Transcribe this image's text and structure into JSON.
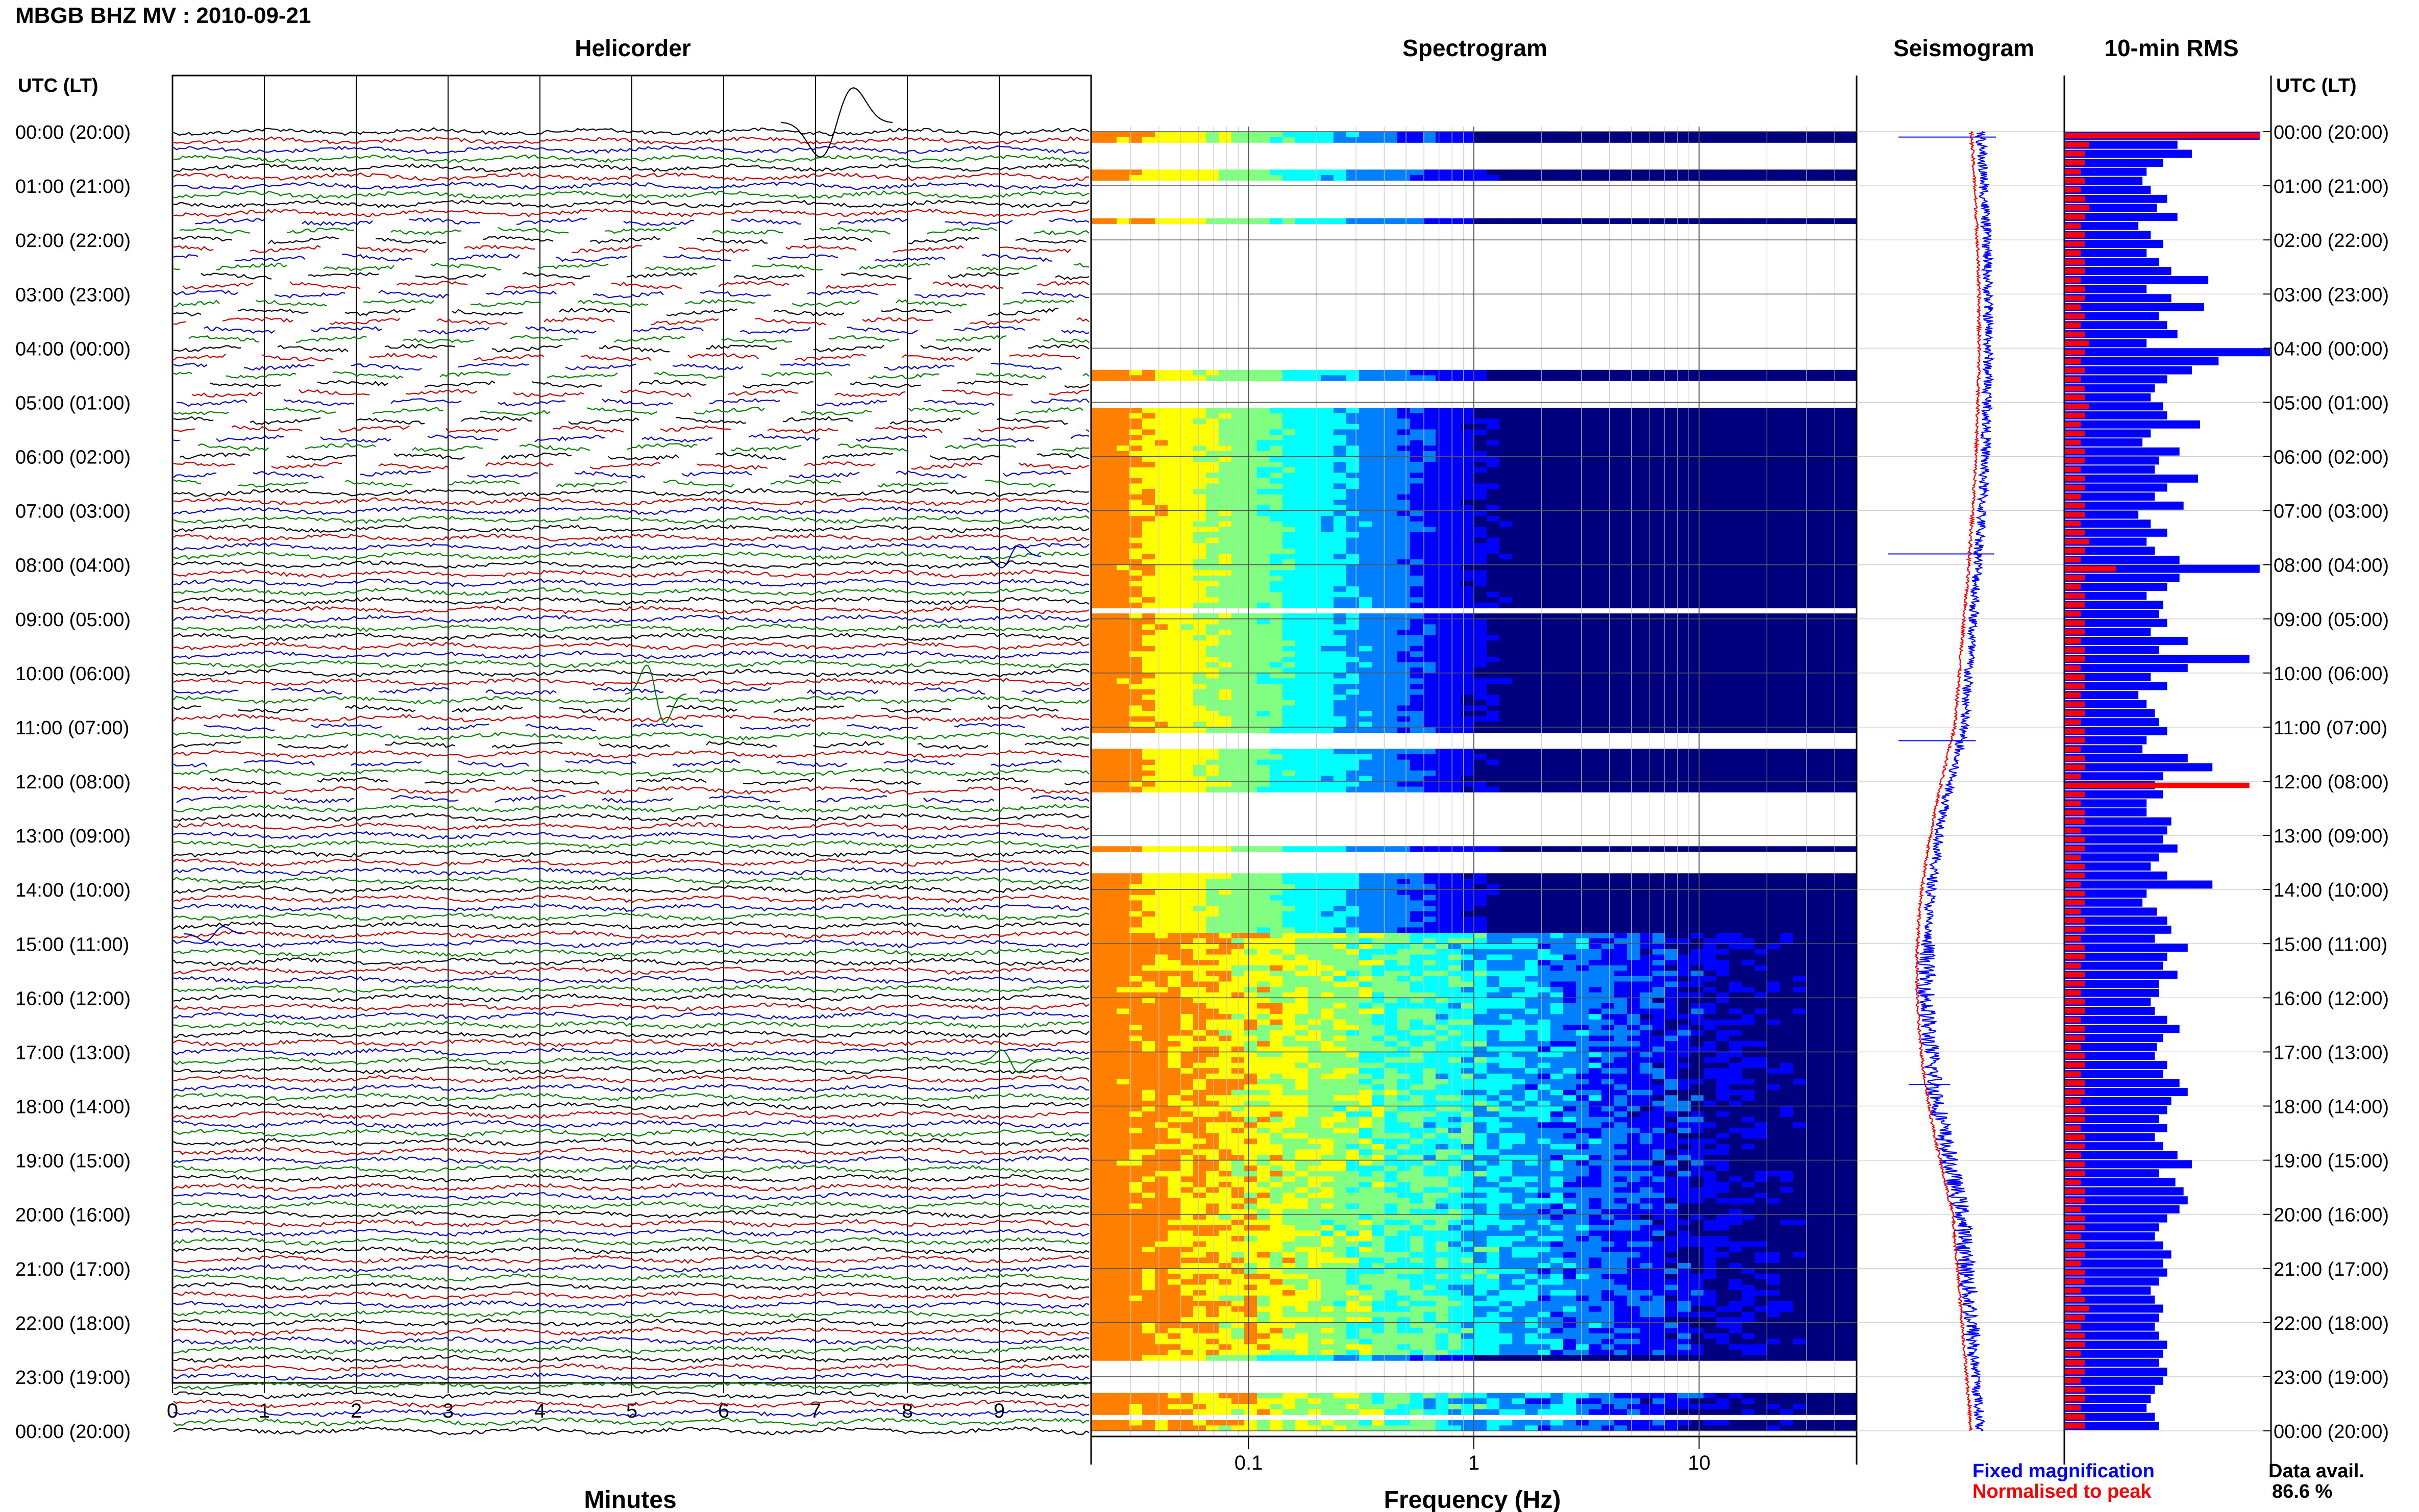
{
  "page": {
    "title": "MBGB BHZ MV : 2010-09-21"
  },
  "panels": {
    "helicorder": "Helicorder",
    "spectrogram": "Spectrogram",
    "seismogram": "Seismogram",
    "rms": "10-min RMS"
  },
  "time_axis": {
    "header": "UTC (LT)",
    "labels": [
      "00:00 (20:00)",
      "01:00 (21:00)",
      "02:00 (22:00)",
      "03:00 (23:00)",
      "04:00 (00:00)",
      "05:00 (01:00)",
      "06:00 (02:00)",
      "07:00 (03:00)",
      "08:00 (04:00)",
      "09:00 (05:00)",
      "10:00 (06:00)",
      "11:00 (07:00)",
      "12:00 (08:00)",
      "13:00 (09:00)",
      "14:00 (10:00)",
      "15:00 (11:00)",
      "16:00 (12:00)",
      "17:00 (13:00)",
      "18:00 (14:00)",
      "19:00 (15:00)",
      "20:00 (16:00)",
      "21:00 (17:00)",
      "22:00 (18:00)",
      "23:00 (19:00)",
      "00:00 (20:00)"
    ]
  },
  "helicorder_axis": {
    "xlabel": "Minutes",
    "ticks": [
      "0",
      "1",
      "2",
      "3",
      "4",
      "5",
      "6",
      "7",
      "8",
      "9"
    ]
  },
  "spectrogram_axis": {
    "xlabel": "Frequency (Hz)",
    "ticks": [
      "0.1",
      "1",
      "10"
    ],
    "xscale": "log"
  },
  "legend": {
    "fixed": "Fixed magnification",
    "normalised": "Normalised to peak",
    "fixed_color": "#0000ff",
    "normalised_color": "#ff0000"
  },
  "availability": {
    "label": "Data avail.",
    "value": "86.6 %"
  },
  "colors": {
    "helicorder_cycle": [
      "#000000",
      "#c00000",
      "#0000c0",
      "#008000"
    ],
    "rms_fixed": "#0000ff",
    "rms_normalised": "#ff0000",
    "grid": "#9a9a9a"
  },
  "chart_data": [
    {
      "type": "line",
      "name": "helicorder",
      "title": "Helicorder",
      "xlabel": "Minutes",
      "xlim": [
        0,
        10
      ],
      "ylim_hours": [
        0,
        24
      ],
      "rows_per_hour": 6,
      "total_rows": 144
    },
    {
      "type": "heatmap",
      "name": "spectrogram",
      "title": "Spectrogram",
      "xlabel": "Frequency (Hz)",
      "xscale": "log",
      "xlim": [
        0.02,
        50
      ],
      "gaps_hours": [
        [
          0.2,
          0.7
        ],
        [
          0.95,
          1.6
        ],
        [
          1.7,
          2.35
        ],
        [
          2.45,
          3.5
        ],
        [
          3.5,
          4.45
        ],
        [
          4.6,
          5.1
        ],
        [
          8.85,
          8.95
        ],
        [
          11.1,
          11.45
        ],
        [
          12.2,
          13.2
        ],
        [
          13.3,
          13.7
        ],
        [
          22.6,
          22.65
        ],
        [
          22.7,
          23.3
        ],
        [
          23.75,
          23.85
        ]
      ],
      "active_hours": [
        [
          14.85,
          22.65
        ],
        [
          23.3,
          24
        ]
      ],
      "colorscale": [
        "#00007f",
        "#0000ff",
        "#0080ff",
        "#00ffff",
        "#80ff80",
        "#ffff00",
        "#ff8000"
      ]
    },
    {
      "type": "bar",
      "name": "10-min RMS",
      "title": "10-min RMS",
      "orientation": "horizontal",
      "series": [
        {
          "name": "Fixed magnification",
          "values": [
            0.95,
            0.55,
            0.62,
            0.48,
            0.4,
            0.38,
            0.42,
            0.5,
            0.45,
            0.55,
            0.36,
            0.42,
            0.48,
            0.4,
            0.46,
            0.52,
            0.7,
            0.4,
            0.52,
            0.68,
            0.46,
            0.5,
            0.55,
            0.4,
            1.0,
            0.75,
            0.62,
            0.5,
            0.44,
            0.42,
            0.48,
            0.5,
            0.66,
            0.42,
            0.38,
            0.56,
            0.46,
            0.44,
            0.65,
            0.5,
            0.44,
            0.58,
            0.36,
            0.42,
            0.5,
            0.4,
            0.44,
            0.56,
            0.95,
            0.56,
            0.5,
            0.4,
            0.48,
            0.46,
            0.5,
            0.42,
            0.6,
            0.46,
            0.9,
            0.6,
            0.42,
            0.5,
            0.36,
            0.4,
            0.44,
            0.46,
            0.5,
            0.4,
            0.38,
            0.6,
            0.72,
            0.48,
            0.44,
            0.48,
            0.4,
            0.4,
            0.52,
            0.5,
            0.48,
            0.55,
            0.46,
            0.42,
            0.5,
            0.72,
            0.4,
            0.38,
            0.45,
            0.5,
            0.52,
            0.44,
            0.6,
            0.5,
            0.48,
            0.55,
            0.46,
            0.46,
            0.42,
            0.44,
            0.5,
            0.56,
            0.48,
            0.45,
            0.44,
            0.5,
            0.48,
            0.56,
            0.6,
            0.52,
            0.5,
            0.46,
            0.5,
            0.44,
            0.48,
            0.55,
            0.62,
            0.46,
            0.54,
            0.58,
            0.6,
            0.56,
            0.5,
            0.46,
            0.44,
            0.48,
            0.52,
            0.48,
            0.5,
            0.46,
            0.42,
            0.44,
            0.48,
            0.46,
            0.44,
            0.46,
            0.5,
            0.48,
            0.46,
            0.5,
            0.48,
            0.44,
            0.42,
            0.4,
            0.44,
            0.46
          ]
        },
        {
          "name": "Normalised to peak",
          "values": [
            0.95,
            0.12,
            0.1,
            0.1,
            0.08,
            0.1,
            0.08,
            0.1,
            0.12,
            0.1,
            0.08,
            0.1,
            0.1,
            0.08,
            0.1,
            0.1,
            0.08,
            0.1,
            0.1,
            0.08,
            0.1,
            0.08,
            0.1,
            0.12,
            0.1,
            0.08,
            0.1,
            0.08,
            0.1,
            0.1,
            0.12,
            0.1,
            0.08,
            0.1,
            0.08,
            0.1,
            0.1,
            0.08,
            0.1,
            0.1,
            0.08,
            0.1,
            0.1,
            0.08,
            0.1,
            0.12,
            0.1,
            0.08,
            0.25,
            0.1,
            0.08,
            0.1,
            0.1,
            0.08,
            0.1,
            0.1,
            0.08,
            0.1,
            0.1,
            0.08,
            0.1,
            0.1,
            0.08,
            0.1,
            0.1,
            0.08,
            0.1,
            0.1,
            0.08,
            0.1,
            0.1,
            0.08,
            0.9,
            0.1,
            0.08,
            0.1,
            0.1,
            0.08,
            0.1,
            0.1,
            0.08,
            0.1,
            0.1,
            0.08,
            0.1,
            0.1,
            0.08,
            0.1,
            0.1,
            0.08,
            0.1,
            0.1,
            0.08,
            0.1,
            0.1,
            0.08,
            0.1,
            0.1,
            0.08,
            0.1,
            0.1,
            0.08,
            0.1,
            0.1,
            0.08,
            0.1,
            0.1,
            0.08,
            0.1,
            0.1,
            0.08,
            0.1,
            0.1,
            0.08,
            0.1,
            0.1,
            0.08,
            0.1,
            0.1,
            0.08,
            0.1,
            0.1,
            0.08,
            0.1,
            0.1,
            0.08,
            0.1,
            0.1,
            0.08,
            0.1,
            0.12,
            0.1,
            0.08,
            0.1,
            0.1,
            0.08,
            0.1,
            0.1,
            0.08,
            0.1,
            0.1,
            0.08,
            0.1,
            0.1
          ]
        }
      ],
      "interval_minutes": 10
    }
  ]
}
